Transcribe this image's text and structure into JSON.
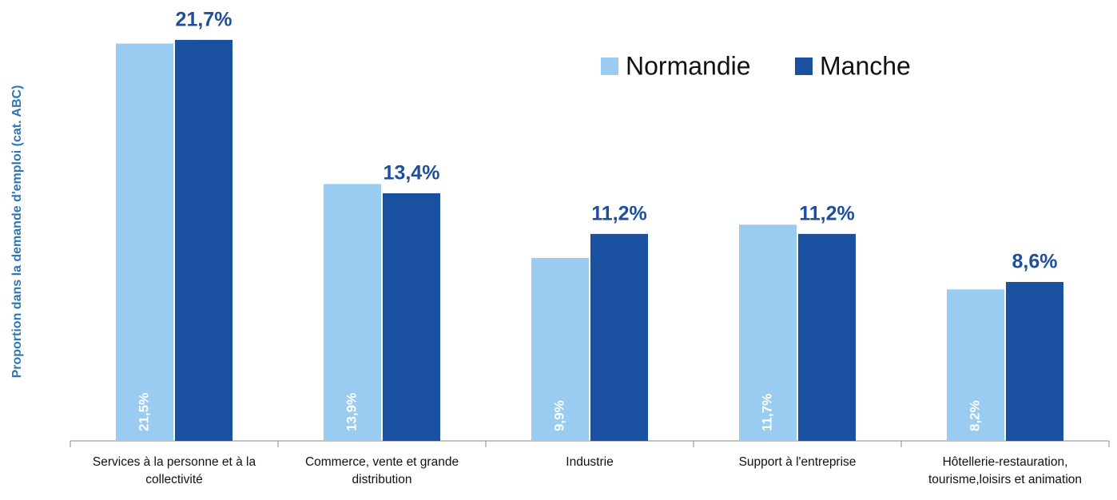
{
  "chart_data": {
    "type": "bar",
    "y_axis_label": "Proportion dans la demande d'emploi (cat. ABC)",
    "categories": [
      "Services à la personne et à la collectivité",
      "Commerce, vente et grande distribution",
      "Industrie",
      "Support à l'entreprise",
      "Hôtellerie-restauration, tourisme,loisirs et animation"
    ],
    "series": [
      {
        "name": "Normandie",
        "color": "#99ccf0",
        "values": [
          21.5,
          13.9,
          9.9,
          11.7,
          8.2
        ],
        "value_labels": [
          "21,5%",
          "13,9%",
          "9,9%",
          "11,7%",
          "8,2%"
        ]
      },
      {
        "name": "Manche",
        "color": "#1a50a0",
        "values": [
          21.7,
          13.4,
          11.2,
          11.2,
          8.6
        ],
        "value_labels": [
          "21,7%",
          "13,4%",
          "11,2%",
          "11,2%",
          "8,6%"
        ]
      }
    ],
    "ylim": [
      0,
      22
    ],
    "legend": "top-right"
  }
}
